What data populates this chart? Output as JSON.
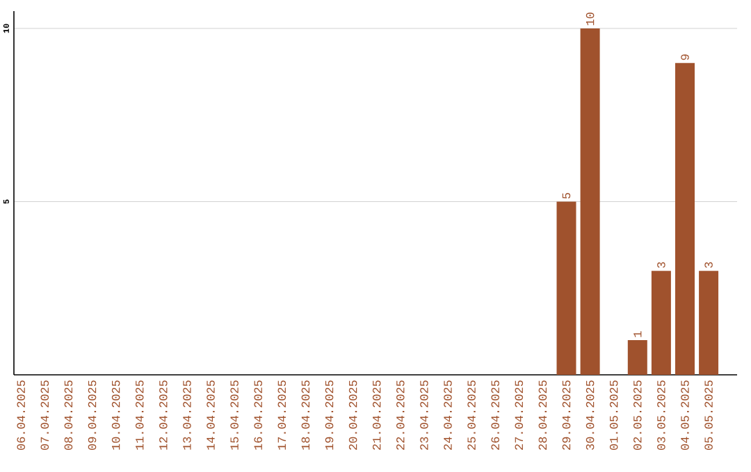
{
  "chart_data": {
    "type": "bar",
    "categories": [
      "06.04.2025",
      "07.04.2025",
      "08.04.2025",
      "09.04.2025",
      "10.04.2025",
      "11.04.2025",
      "12.04.2025",
      "13.04.2025",
      "14.04.2025",
      "15.04.2025",
      "16.04.2025",
      "17.04.2025",
      "18.04.2025",
      "19.04.2025",
      "20.04.2025",
      "21.04.2025",
      "22.04.2025",
      "23.04.2025",
      "24.04.2025",
      "25.04.2025",
      "26.04.2025",
      "27.04.2025",
      "28.04.2025",
      "29.04.2025",
      "30.04.2025",
      "01.05.2025",
      "02.05.2025",
      "03.05.2025",
      "04.05.2025",
      "05.05.2025"
    ],
    "values": [
      0,
      0,
      0,
      0,
      0,
      0,
      0,
      0,
      0,
      0,
      0,
      0,
      0,
      0,
      0,
      0,
      0,
      0,
      0,
      0,
      0,
      0,
      0,
      5,
      10,
      0,
      1,
      3,
      9,
      3
    ],
    "value_labels": [
      null,
      null,
      null,
      null,
      null,
      null,
      null,
      null,
      null,
      null,
      null,
      null,
      null,
      null,
      null,
      null,
      null,
      null,
      null,
      null,
      null,
      null,
      null,
      "5",
      "10",
      null,
      "1",
      "3",
      "9",
      "3"
    ],
    "color": "#a0522d",
    "ylim": [
      0,
      10.5
    ],
    "yticks": [
      5,
      10
    ],
    "grid": "y"
  }
}
